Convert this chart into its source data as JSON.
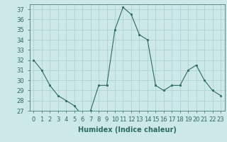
{
  "x": [
    0,
    1,
    2,
    3,
    4,
    5,
    6,
    7,
    8,
    9,
    10,
    11,
    12,
    13,
    14,
    15,
    16,
    17,
    18,
    19,
    20,
    21,
    22,
    23
  ],
  "y": [
    32,
    31,
    29.5,
    28.5,
    28,
    27.5,
    26.5,
    27,
    29.5,
    29.5,
    35,
    37.2,
    36.5,
    34.5,
    34,
    29.5,
    29,
    29.5,
    29.5,
    31,
    31.5,
    30,
    29,
    28.5
  ],
  "line_color": "#2e6b5e",
  "marker": "s",
  "marker_size": 2,
  "bg_color": "#cce8e8",
  "grid_color": "#aacece",
  "xlabel": "Humidex (Indice chaleur)",
  "ylim": [
    27,
    37.5
  ],
  "xlim": [
    -0.5,
    23.5
  ],
  "yticks": [
    27,
    28,
    29,
    30,
    31,
    32,
    33,
    34,
    35,
    36,
    37
  ],
  "xticks": [
    0,
    1,
    2,
    3,
    4,
    5,
    6,
    7,
    8,
    9,
    10,
    11,
    12,
    13,
    14,
    15,
    16,
    17,
    18,
    19,
    20,
    21,
    22,
    23
  ],
  "tick_fontsize": 6,
  "label_fontsize": 7,
  "tick_color": "#2e6b5e",
  "spine_color": "#2e6b5e"
}
